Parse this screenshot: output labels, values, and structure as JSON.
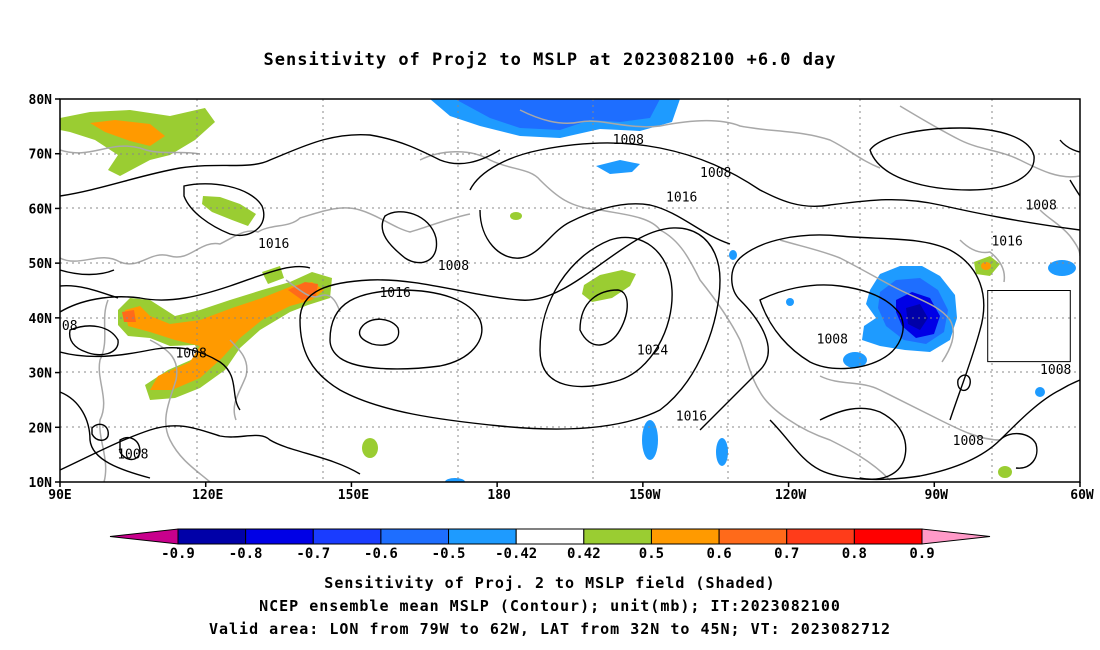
{
  "title": "Sensitivity of Proj2 to MSLP at 2023082100 +6.0 day",
  "map": {
    "lat_range": [
      10,
      80
    ],
    "lon_range": [
      90,
      300
    ],
    "lat_labels": [
      "80N",
      "70N",
      "60N",
      "50N",
      "40N",
      "30N",
      "20N",
      "10N"
    ],
    "lat_values": [
      80,
      70,
      60,
      50,
      40,
      30,
      20,
      10
    ],
    "lon_labels": [
      "90E",
      "120E",
      "150E",
      "180",
      "150W",
      "120W",
      "90W",
      "60W"
    ],
    "lon_values": [
      90,
      120,
      150,
      180,
      210,
      240,
      270,
      300
    ],
    "grid": "dotted",
    "valid_box": {
      "lon_min": 281,
      "lon_max": 298,
      "lat_min": 32,
      "lat_max": 45
    }
  },
  "contour_labels": [
    {
      "text": "1008",
      "lon": 207,
      "lat": 72.5
    },
    {
      "text": "1008",
      "lon": 225,
      "lat": 66.5
    },
    {
      "text": "1016",
      "lon": 218,
      "lat": 62
    },
    {
      "text": "1016",
      "lon": 134,
      "lat": 53.5
    },
    {
      "text": "1008",
      "lon": 171,
      "lat": 49.5
    },
    {
      "text": "1016",
      "lon": 159,
      "lat": 44.5
    },
    {
      "text": "08",
      "lon": 92,
      "lat": 38.5
    },
    {
      "text": "1008",
      "lon": 117,
      "lat": 33.5
    },
    {
      "text": "1024",
      "lon": 212,
      "lat": 34
    },
    {
      "text": "1008",
      "lon": 249,
      "lat": 36
    },
    {
      "text": "1016",
      "lon": 220,
      "lat": 22
    },
    {
      "text": "1008",
      "lon": 105,
      "lat": 15
    },
    {
      "text": "1008",
      "lon": 277,
      "lat": 17.5
    },
    {
      "text": "1008",
      "lon": 292,
      "lat": 60.5
    },
    {
      "text": "1016",
      "lon": 285,
      "lat": 54
    },
    {
      "text": "1008",
      "lon": 295,
      "lat": 30.5
    }
  ],
  "colorbar": {
    "labels": [
      "-0.9",
      "-0.8",
      "-0.7",
      "-0.6",
      "-0.5",
      "-0.42",
      "0.42",
      "0.5",
      "0.6",
      "0.7",
      "0.8",
      "0.9"
    ],
    "colors": [
      "#0000a8",
      "#0000e6",
      "#1a3cff",
      "#1e6eff",
      "#1e9bff",
      "#ffffff",
      "#9acd32",
      "#ff9a00",
      "#ff6a1a",
      "#ff3c1a",
      "#ff0000"
    ],
    "low_end_color": "#c8008c",
    "high_end_color": "#ff9ac8"
  },
  "captions": [
    "Sensitivity of Proj. 2 to MSLP field (Shaded)",
    "NCEP ensemble mean MSLP (Contour); unit(mb); IT:2023082100",
    "Valid area: LON from 79W to 62W, LAT from 32N to 45N; VT: 2023082712"
  ]
}
